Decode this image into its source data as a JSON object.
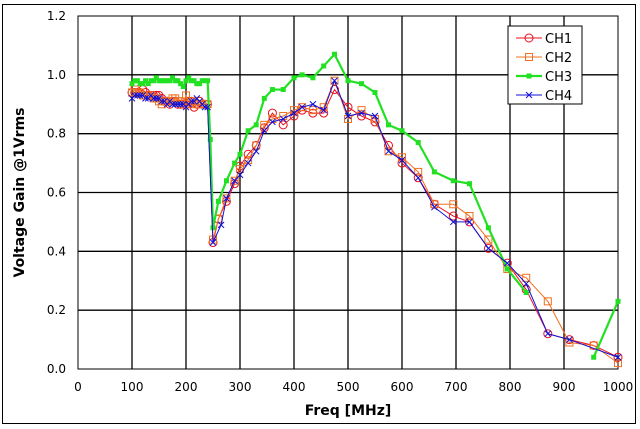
{
  "chart_data": {
    "type": "line",
    "title": "",
    "xlabel": "Freq [MHz]",
    "ylabel": "Voltage Gain @1Vrms",
    "xlim": [
      0,
      1000
    ],
    "ylim": [
      0,
      1.2
    ],
    "xticks": [
      "0",
      "100",
      "200",
      "300",
      "400",
      "500",
      "600",
      "700",
      "800",
      "900",
      "1000"
    ],
    "yticks": [
      "0.0",
      "0.2",
      "0.4",
      "0.6",
      "0.8",
      "1.0",
      "1.2"
    ],
    "grid": true,
    "legend_position": "upper-right",
    "series": [
      {
        "name": "CH1",
        "color": "#e8101c",
        "marker": "circle",
        "x": [
          100,
          105,
          110,
          115,
          120,
          125,
          130,
          135,
          140,
          145,
          150,
          155,
          160,
          165,
          170,
          175,
          180,
          185,
          190,
          195,
          200,
          205,
          210,
          215,
          220,
          225,
          230,
          235,
          240,
          250,
          260,
          275,
          290,
          300,
          315,
          330,
          345,
          360,
          380,
          400,
          415,
          435,
          455,
          475,
          500,
          525,
          550,
          575,
          600,
          630,
          660,
          695,
          725,
          760,
          795,
          830,
          870,
          910,
          955,
          1000
        ],
        "y": [
          0.94,
          0.94,
          0.94,
          0.94,
          0.95,
          0.94,
          0.93,
          0.93,
          0.93,
          0.93,
          0.93,
          0.92,
          0.91,
          0.91,
          0.9,
          0.91,
          0.91,
          0.9,
          0.9,
          0.9,
          0.9,
          0.91,
          0.91,
          0.89,
          0.9,
          0.91,
          0.9,
          0.9,
          0.9,
          0.43,
          0.51,
          0.57,
          0.63,
          0.69,
          0.73,
          0.76,
          0.82,
          0.87,
          0.83,
          0.86,
          0.88,
          0.87,
          0.87,
          0.95,
          0.89,
          0.86,
          0.84,
          0.76,
          0.7,
          0.65,
          0.56,
          0.52,
          0.5,
          0.41,
          0.36,
          0.27,
          0.12,
          0.1,
          0.08,
          0.04
        ]
      },
      {
        "name": "CH2",
        "color": "#f07020",
        "marker": "square",
        "x": [
          100,
          105,
          110,
          115,
          120,
          125,
          130,
          135,
          140,
          145,
          150,
          155,
          160,
          165,
          170,
          175,
          180,
          185,
          190,
          195,
          200,
          205,
          210,
          215,
          220,
          225,
          230,
          235,
          240,
          250,
          260,
          275,
          290,
          300,
          315,
          330,
          345,
          360,
          380,
          400,
          415,
          435,
          455,
          475,
          500,
          525,
          550,
          575,
          600,
          630,
          660,
          695,
          725,
          760,
          795,
          830,
          870,
          910,
          955,
          1000
        ],
        "y": [
          0.94,
          0.95,
          0.94,
          0.94,
          0.93,
          0.93,
          0.93,
          0.93,
          0.92,
          0.92,
          0.91,
          0.9,
          0.91,
          0.91,
          0.91,
          0.92,
          0.92,
          0.91,
          0.91,
          0.9,
          0.93,
          0.9,
          0.91,
          0.91,
          0.9,
          0.9,
          0.9,
          0.9,
          0.9,
          0.44,
          0.51,
          0.58,
          0.64,
          0.68,
          0.71,
          0.76,
          0.83,
          0.85,
          0.86,
          0.88,
          0.89,
          0.88,
          0.89,
          0.98,
          0.85,
          0.88,
          0.85,
          0.74,
          0.72,
          0.67,
          0.56,
          0.56,
          0.52,
          0.44,
          0.34,
          0.31,
          0.23,
          0.09,
          0.08,
          0.02
        ]
      },
      {
        "name": "CH3",
        "color": "#22e022",
        "marker": "square-filled",
        "segments": [
          {
            "x": [
              100,
              105,
              110,
              115,
              120,
              125,
              130,
              135,
              140,
              145,
              150,
              155,
              160,
              165,
              170,
              175,
              180,
              185,
              190,
              195,
              200,
              205,
              210,
              215,
              220,
              225,
              230,
              235,
              240,
              245,
              250,
              260,
              275,
              290,
              300,
              315,
              330,
              345,
              360,
              380,
              400,
              415,
              435,
              455,
              475,
              500,
              525,
              550,
              575,
              600,
              630,
              660,
              695,
              725,
              760,
              795,
              830
            ],
            "y": [
              0.97,
              0.98,
              0.98,
              0.97,
              0.97,
              0.98,
              0.97,
              0.98,
              0.98,
              0.99,
              0.98,
              0.98,
              0.98,
              0.98,
              0.98,
              0.99,
              0.98,
              0.98,
              0.97,
              0.96,
              0.98,
              0.99,
              0.98,
              0.98,
              0.97,
              0.97,
              0.98,
              0.98,
              0.98,
              0.78,
              0.48,
              0.57,
              0.64,
              0.7,
              0.73,
              0.81,
              0.83,
              0.92,
              0.95,
              0.95,
              0.99,
              1.0,
              0.99,
              1.03,
              1.07,
              0.98,
              0.97,
              0.94,
              0.83,
              0.81,
              0.77,
              0.67,
              0.64,
              0.63,
              0.48,
              0.34,
              0.26
            ]
          },
          {
            "x": [
              955,
              1000
            ],
            "y": [
              0.04,
              0.23
            ]
          }
        ]
      },
      {
        "name": "CH4",
        "color": "#1010d8",
        "marker": "x",
        "x": [
          100,
          105,
          110,
          115,
          120,
          125,
          130,
          135,
          140,
          145,
          150,
          155,
          160,
          165,
          170,
          175,
          180,
          185,
          190,
          195,
          200,
          205,
          210,
          215,
          220,
          225,
          230,
          235,
          240,
          250,
          265,
          275,
          290,
          300,
          315,
          330,
          345,
          360,
          380,
          400,
          415,
          435,
          455,
          475,
          500,
          525,
          550,
          575,
          600,
          630,
          660,
          695,
          725,
          760,
          795,
          830,
          870,
          910,
          1000
        ],
        "y": [
          0.92,
          0.93,
          0.93,
          0.93,
          0.93,
          0.92,
          0.92,
          0.93,
          0.92,
          0.92,
          0.92,
          0.91,
          0.91,
          0.9,
          0.91,
          0.9,
          0.9,
          0.9,
          0.9,
          0.9,
          0.89,
          0.9,
          0.91,
          0.91,
          0.92,
          0.91,
          0.9,
          0.89,
          0.89,
          0.43,
          0.49,
          0.58,
          0.64,
          0.66,
          0.7,
          0.74,
          0.81,
          0.84,
          0.85,
          0.87,
          0.89,
          0.9,
          0.88,
          0.98,
          0.86,
          0.87,
          0.86,
          0.74,
          0.71,
          0.65,
          0.55,
          0.5,
          0.5,
          0.41,
          0.36,
          0.29,
          0.12,
          0.1,
          0.04
        ]
      }
    ]
  }
}
